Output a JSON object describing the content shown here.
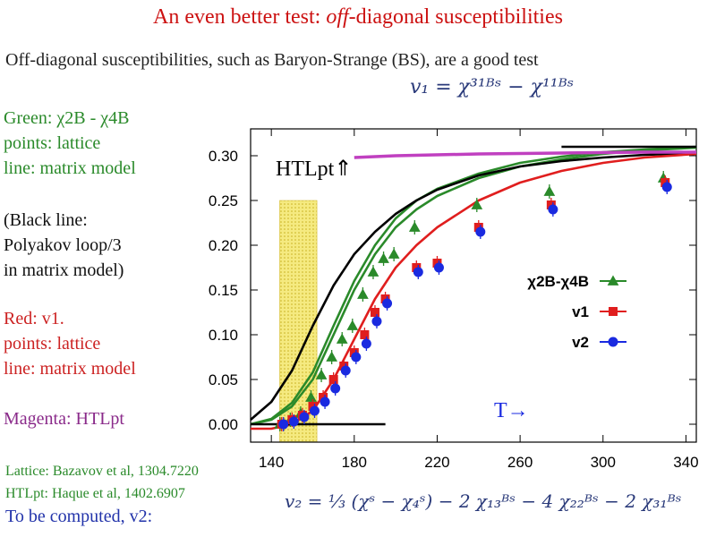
{
  "slide": {
    "title_prefix": "An even better test: ",
    "title_emph": "off",
    "title_suffix": "-diagonal susceptibilities",
    "subtitle": "Off-diagonal susceptibilities, such as Baryon-Strange (BS), are a good test",
    "eq_v1": "v₁ = χ³¹ᴮˢ − χ¹¹ᴮˢ",
    "eq_v2": "v₂ = ⅓ (χˢ − χ₄ˢ) − 2 χ₁₃ᴮˢ − 4 χ₂₂ᴮˢ − 2 χ₃₁ᴮˢ",
    "green_title": "Green: χ2B - χ4B",
    "green_points": "points: lattice",
    "green_line": "line: matrix model",
    "black_1": "(Black line:",
    "black_2": "Polyakov loop/3",
    "black_3": "in matrix model)",
    "red_title": "Red: v1.",
    "red_points": "points: lattice",
    "red_line": "line: matrix model",
    "magenta": "Magenta: HTLpt",
    "lattice_ref": "Lattice: Bazavov et al, 1304.7220",
    "htlpt_ref": "HTLpt: Haque et al, 1402.6907",
    "to_compute": "To be computed, v2:"
  },
  "colors": {
    "green": "#2a8a2a",
    "red": "#e01e1e",
    "blue": "#1a2ae0",
    "black": "#000000",
    "magenta": "#c040c0",
    "band": "#f5ea80"
  },
  "chart_data": {
    "type": "scatter",
    "xlim": [
      130,
      345
    ],
    "ylim": [
      -0.02,
      0.33
    ],
    "x_ticks": [
      140,
      180,
      220,
      260,
      300,
      340
    ],
    "y_ticks": [
      0.0,
      0.05,
      0.1,
      0.15,
      0.2,
      0.25,
      0.3
    ],
    "band": [
      144,
      162
    ],
    "htlpt_label": "HTLpt⇑",
    "t_label": "T→",
    "legend": [
      "χ2B-χ4B",
      "v1",
      "v2"
    ],
    "series": [
      {
        "name": "χ2B-χ4B",
        "x": [
          145,
          150,
          155,
          160,
          165,
          170,
          175,
          180,
          185,
          190,
          195,
          200,
          210,
          240,
          275,
          330
        ],
        "y": [
          0.0,
          0.005,
          0.012,
          0.03,
          0.055,
          0.075,
          0.095,
          0.11,
          0.145,
          0.17,
          0.185,
          0.19,
          0.22,
          0.245,
          0.26,
          0.275
        ]
      },
      {
        "name": "v1",
        "x": [
          145,
          150,
          155,
          160,
          165,
          170,
          175,
          180,
          185,
          190,
          195,
          210,
          220,
          240,
          275,
          330
        ],
        "y": [
          0.0,
          0.005,
          0.01,
          0.02,
          0.03,
          0.05,
          0.065,
          0.08,
          0.1,
          0.125,
          0.14,
          0.175,
          0.18,
          0.22,
          0.245,
          0.27
        ]
      },
      {
        "name": "v2",
        "x": [
          145,
          150,
          155,
          160,
          165,
          170,
          175,
          180,
          185,
          190,
          195,
          210,
          220,
          240,
          275,
          330
        ],
        "y": [
          0.0,
          0.003,
          0.008,
          0.015,
          0.025,
          0.04,
          0.06,
          0.075,
          0.09,
          0.115,
          0.135,
          0.17,
          0.175,
          0.215,
          0.24,
          0.265
        ]
      }
    ],
    "lines": [
      {
        "name": "green-model-1",
        "color": "green",
        "x": [
          130,
          140,
          150,
          160,
          170,
          180,
          190,
          200,
          210,
          220,
          240,
          260,
          280,
          300,
          320,
          345
        ],
        "y": [
          0.0,
          0.005,
          0.02,
          0.05,
          0.1,
          0.15,
          0.19,
          0.22,
          0.24,
          0.255,
          0.275,
          0.288,
          0.296,
          0.302,
          0.306,
          0.309
        ]
      },
      {
        "name": "green-model-2",
        "color": "green",
        "x": [
          130,
          140,
          150,
          160,
          170,
          180,
          190,
          200,
          210,
          220,
          240,
          260,
          280,
          300,
          320,
          345
        ],
        "y": [
          0.0,
          0.006,
          0.024,
          0.058,
          0.11,
          0.16,
          0.2,
          0.23,
          0.25,
          0.263,
          0.28,
          0.292,
          0.299,
          0.304,
          0.307,
          0.31
        ]
      },
      {
        "name": "black-polyakov",
        "color": "black",
        "x": [
          130,
          140,
          150,
          160,
          170,
          180,
          190,
          200,
          210,
          220,
          240,
          260,
          280,
          300,
          320,
          345
        ],
        "y": [
          0.005,
          0.025,
          0.06,
          0.11,
          0.155,
          0.19,
          0.215,
          0.235,
          0.25,
          0.262,
          0.278,
          0.288,
          0.294,
          0.298,
          0.301,
          0.303
        ]
      },
      {
        "name": "red-model",
        "color": "red",
        "x": [
          130,
          140,
          150,
          160,
          170,
          180,
          190,
          200,
          210,
          220,
          240,
          260,
          280,
          300,
          320,
          345
        ],
        "y": [
          -0.005,
          -0.005,
          0.0,
          0.015,
          0.05,
          0.095,
          0.14,
          0.175,
          0.2,
          0.22,
          0.25,
          0.27,
          0.283,
          0.292,
          0.298,
          0.302
        ]
      },
      {
        "name": "magenta-htlpt",
        "color": "magenta",
        "x": [
          180,
          200,
          240,
          280,
          320,
          345
        ],
        "y": [
          0.298,
          0.3,
          0.302,
          0.303,
          0.304,
          0.304
        ]
      },
      {
        "name": "black-high-T",
        "color": "black",
        "x": [
          280,
          345
        ],
        "y": [
          0.31,
          0.31
        ]
      },
      {
        "name": "black-low-T",
        "color": "black",
        "x": [
          130,
          195
        ],
        "y": [
          0.0,
          0.0
        ]
      }
    ]
  }
}
